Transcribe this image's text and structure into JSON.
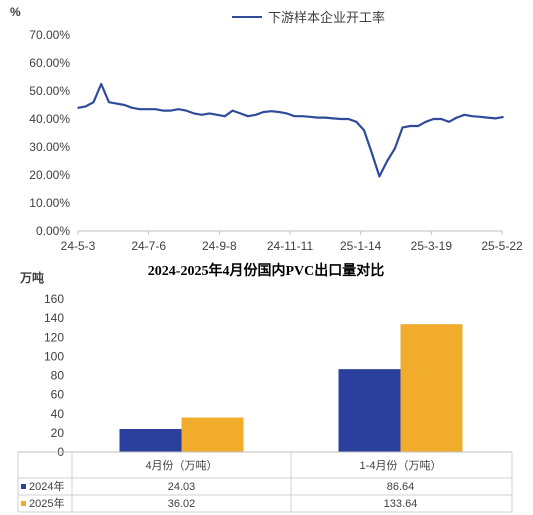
{
  "chart_data": [
    {
      "type": "line",
      "title": "",
      "ylabel": "%",
      "xlabel": "",
      "ylim": [
        0,
        70
      ],
      "y_ticks": [
        "0.00%",
        "10.00%",
        "20.00%",
        "30.00%",
        "40.00%",
        "50.00%",
        "60.00%",
        "70.00%"
      ],
      "x_ticks": [
        "24-5-3",
        "24-7-6",
        "24-9-8",
        "24-11-11",
        "25-1-14",
        "25-3-19",
        "25-5-22"
      ],
      "legend": "top-right",
      "color": "#2f4b9a",
      "series": [
        {
          "name": "下游样本企业开工率",
          "x": [
            "2024-05-03",
            "2024-05-10",
            "2024-05-17",
            "2024-05-24",
            "2024-05-31",
            "2024-06-07",
            "2024-06-14",
            "2024-06-21",
            "2024-06-28",
            "2024-07-05",
            "2024-07-12",
            "2024-07-19",
            "2024-07-26",
            "2024-08-02",
            "2024-08-09",
            "2024-08-16",
            "2024-08-23",
            "2024-08-30",
            "2024-09-06",
            "2024-09-13",
            "2024-09-20",
            "2024-09-27",
            "2024-10-04",
            "2024-10-11",
            "2024-10-18",
            "2024-10-25",
            "2024-11-01",
            "2024-11-08",
            "2024-11-15",
            "2024-11-22",
            "2024-11-29",
            "2024-12-06",
            "2024-12-13",
            "2024-12-20",
            "2024-12-27",
            "2025-01-03",
            "2025-01-10",
            "2025-01-17",
            "2025-01-24",
            "2025-01-31",
            "2025-02-07",
            "2025-02-14",
            "2025-02-21",
            "2025-02-28",
            "2025-03-07",
            "2025-03-14",
            "2025-03-21",
            "2025-03-28",
            "2025-04-04",
            "2025-04-11",
            "2025-04-18",
            "2025-04-25",
            "2025-05-02",
            "2025-05-09",
            "2025-05-16",
            "2025-05-23"
          ],
          "values": [
            44.0,
            44.5,
            46.0,
            52.5,
            46.0,
            45.5,
            45.0,
            44.0,
            43.5,
            43.5,
            43.5,
            43.0,
            43.0,
            43.5,
            43.0,
            42.0,
            41.5,
            42.0,
            41.5,
            41.0,
            43.0,
            42.0,
            41.0,
            41.5,
            42.5,
            42.8,
            42.5,
            42.0,
            41.0,
            41.0,
            40.8,
            40.5,
            40.5,
            40.2,
            40.0,
            40.0,
            39.0,
            36.0,
            28.0,
            19.5,
            25.0,
            29.5,
            37.0,
            37.5,
            37.5,
            39.0,
            40.0,
            40.0,
            39.0,
            40.5,
            41.5,
            41.0,
            40.8,
            40.5,
            40.2,
            40.7
          ]
        }
      ]
    },
    {
      "type": "bar",
      "title": "2024-2025年4月份国内PVC出口量对比",
      "ylabel": "万吨",
      "xlabel": "",
      "ylim": [
        0,
        160
      ],
      "y_ticks": [
        "0",
        "20",
        "40",
        "60",
        "80",
        "100",
        "120",
        "140",
        "160"
      ],
      "categories": [
        "4月份（万吨）",
        "1-4月份（万吨）"
      ],
      "series": [
        {
          "name": "2024年",
          "color": "#2b3f9c",
          "values": [
            24.03,
            86.64
          ],
          "labels": [
            "24.03",
            "86.64"
          ]
        },
        {
          "name": "2025年",
          "color": "#f0ac2a",
          "values": [
            36.02,
            133.64
          ],
          "labels": [
            "36.02",
            "133.64"
          ]
        }
      ]
    }
  ]
}
